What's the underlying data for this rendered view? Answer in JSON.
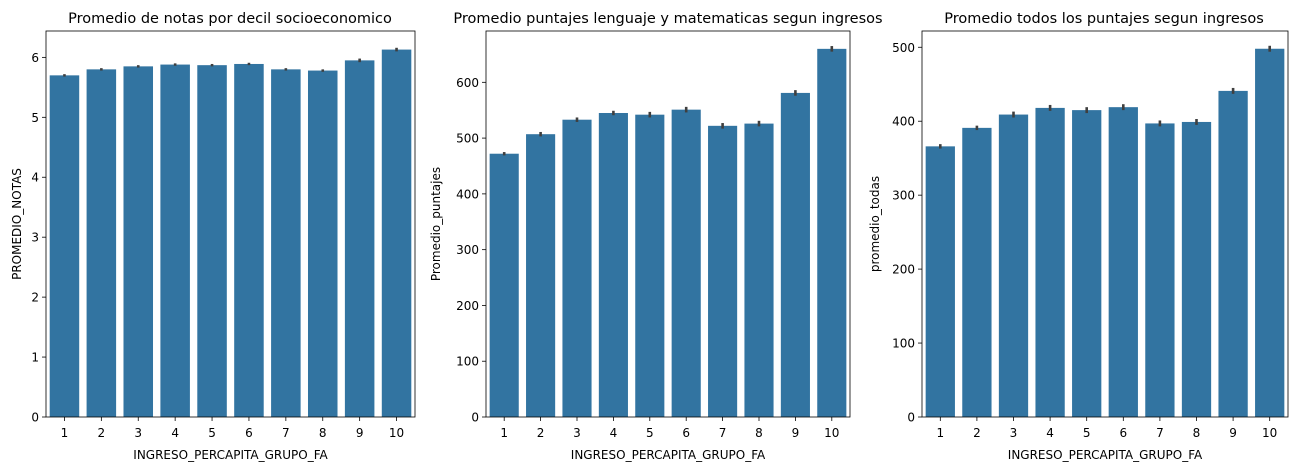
{
  "chart_data": [
    {
      "type": "bar",
      "title": "Promedio de notas por decil socioeconomico",
      "xlabel": "INGRESO_PERCAPITA_GRUPO_FA",
      "ylabel": "PROMEDIO_NOTAS",
      "categories": [
        "1",
        "2",
        "3",
        "4",
        "5",
        "6",
        "7",
        "8",
        "9",
        "10"
      ],
      "values": [
        5.7,
        5.8,
        5.85,
        5.88,
        5.87,
        5.89,
        5.8,
        5.78,
        5.95,
        6.13
      ],
      "errors": [
        0.02,
        0.02,
        0.02,
        0.02,
        0.02,
        0.02,
        0.02,
        0.02,
        0.03,
        0.03
      ],
      "ylim": [
        0,
        6.44
      ],
      "yticks": [
        0,
        1,
        2,
        3,
        4,
        5,
        6
      ],
      "ytick_labels": [
        "0",
        "1",
        "2",
        "3",
        "4",
        "5",
        "6"
      ],
      "grid": false
    },
    {
      "type": "bar",
      "title": "Promedio puntajes lenguaje y matematicas segun ingresos",
      "xlabel": "INGRESO_PERCAPITA_GRUPO_FA",
      "ylabel": "Promedio_puntajes",
      "categories": [
        "1",
        "2",
        "3",
        "4",
        "5",
        "6",
        "7",
        "8",
        "9",
        "10"
      ],
      "values": [
        472,
        507,
        533,
        545,
        542,
        551,
        522,
        526,
        581,
        660
      ],
      "errors": [
        3,
        4,
        4,
        4,
        5,
        5,
        5,
        5,
        5,
        5
      ],
      "ylim": [
        0,
        692
      ],
      "yticks": [
        0,
        100,
        200,
        300,
        400,
        500,
        600
      ],
      "ytick_labels": [
        "0",
        "100",
        "200",
        "300",
        "400",
        "500",
        "600"
      ],
      "grid": false
    },
    {
      "type": "bar",
      "title": "Promedio todos los puntajes segun ingresos",
      "xlabel": "INGRESO_PERCAPITA_GRUPO_FA",
      "ylabel": "promedio_todas",
      "categories": [
        "1",
        "2",
        "3",
        "4",
        "5",
        "6",
        "7",
        "8",
        "9",
        "10"
      ],
      "values": [
        366,
        391,
        409,
        418,
        415,
        419,
        397,
        399,
        441,
        498
      ],
      "errors": [
        3,
        3,
        4,
        4,
        4,
        4,
        4,
        4,
        4,
        4
      ],
      "ylim": [
        0,
        522
      ],
      "yticks": [
        0,
        100,
        200,
        300,
        400,
        500
      ],
      "ytick_labels": [
        "0",
        "100",
        "200",
        "300",
        "400",
        "500"
      ],
      "grid": false
    }
  ],
  "colors": {
    "bar": "#3274a1",
    "errorbar": "#3f3f3f"
  }
}
